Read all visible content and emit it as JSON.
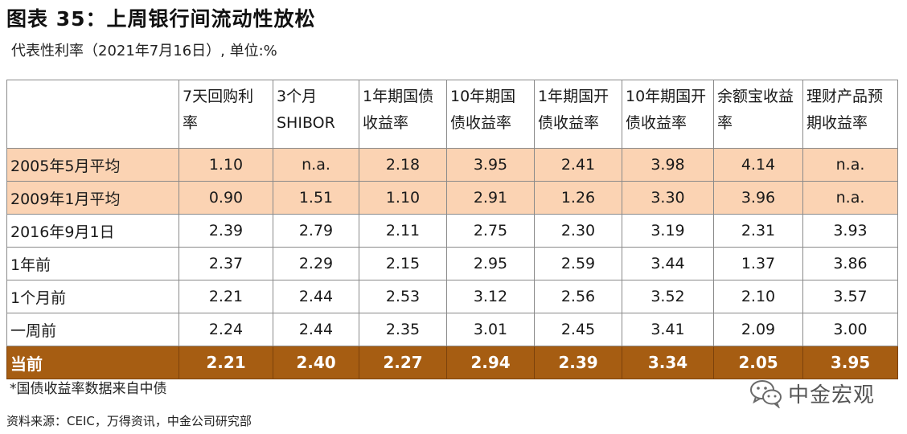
{
  "title": "图表 35：上周银行间流动性放松",
  "subtitle": "代表性利率（2021年7月16日）, 单位:%",
  "table": {
    "headers": [
      "",
      "7天回购利率",
      "3个月SHIBOR",
      "1年期国债收益率",
      "10年期国债收益率",
      "1年期国开债收益率",
      "10年期国开债收益率",
      "余额宝收益率",
      "理财产品预期收益率"
    ],
    "rows": [
      {
        "label": "2005年5月平均",
        "values": [
          "1.10",
          "n.a.",
          "2.18",
          "3.95",
          "2.41",
          "3.98",
          "4.14",
          "n.a."
        ]
      },
      {
        "label": "2009年1月平均",
        "values": [
          "0.90",
          "1.51",
          "1.10",
          "2.91",
          "1.26",
          "3.30",
          "3.96",
          "n.a."
        ]
      },
      {
        "label": "2016年9月1日",
        "values": [
          "2.39",
          "2.79",
          "2.11",
          "2.75",
          "2.30",
          "3.19",
          "2.31",
          "3.93"
        ]
      },
      {
        "label": "1年前",
        "values": [
          "2.37",
          "2.29",
          "2.15",
          "2.95",
          "2.59",
          "3.44",
          "1.37",
          "3.86"
        ]
      },
      {
        "label": "1个月前",
        "values": [
          "2.21",
          "2.44",
          "2.53",
          "3.12",
          "2.56",
          "3.52",
          "2.10",
          "3.57"
        ]
      },
      {
        "label": "一周前",
        "values": [
          "2.24",
          "2.44",
          "2.35",
          "3.01",
          "2.45",
          "3.41",
          "2.09",
          "3.00"
        ]
      },
      {
        "label": "当前",
        "values": [
          "2.21",
          "2.40",
          "2.27",
          "2.94",
          "2.39",
          "3.34",
          "2.05",
          "3.95"
        ]
      }
    ]
  },
  "footnote": "*国债收益率数据来自中债",
  "source": "资料来源：CEIC，万得资讯，中金公司研究部",
  "watermark": {
    "text": "中金宏观",
    "icon": "wechat-icon"
  },
  "colors": {
    "highlight_row": "#fbd3b3",
    "current_row": "#a65d12"
  }
}
